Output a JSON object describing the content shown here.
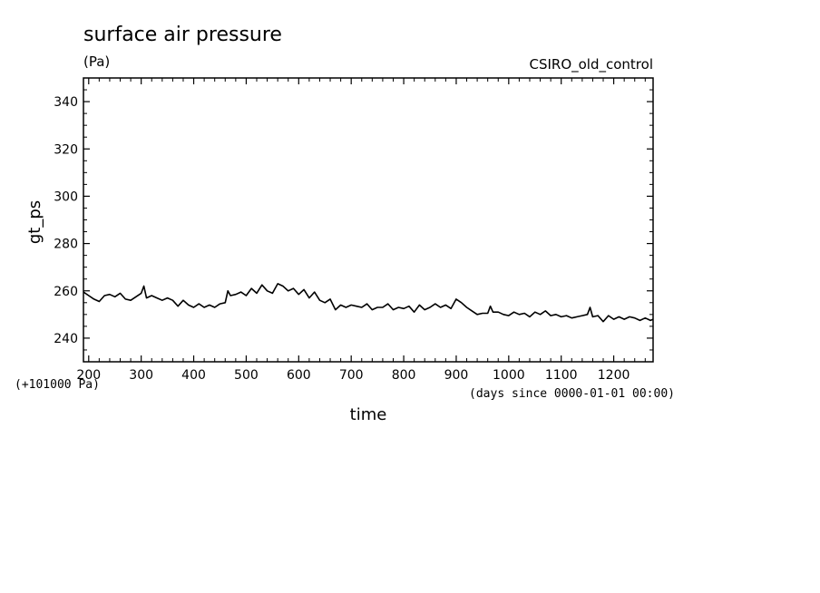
{
  "chart_data": {
    "type": "line",
    "title": "surface air pressure",
    "units": "(Pa)",
    "experiment": "CSIRO_old_control",
    "xlabel": "time",
    "x_units": "(days since 0000-01-01 00:00)",
    "ylabel": "gt_ps",
    "y_offset_label": "(+101000 Pa)",
    "xlim": [
      190,
      1275
    ],
    "ylim": [
      230,
      350
    ],
    "x_ticks": [
      200,
      300,
      400,
      500,
      600,
      700,
      800,
      900,
      1000,
      1100,
      1200
    ],
    "y_ticks": [
      240,
      260,
      280,
      300,
      320,
      340
    ],
    "grid": false,
    "series": [
      {
        "color": "#000000",
        "x": [
          190,
          200,
          210,
          220,
          230,
          240,
          250,
          260,
          270,
          280,
          290,
          300,
          305,
          310,
          320,
          330,
          340,
          350,
          360,
          370,
          380,
          390,
          400,
          410,
          420,
          430,
          440,
          450,
          460,
          465,
          470,
          480,
          490,
          500,
          510,
          520,
          530,
          540,
          550,
          560,
          570,
          580,
          590,
          600,
          610,
          620,
          630,
          640,
          650,
          660,
          670,
          680,
          690,
          700,
          710,
          720,
          730,
          740,
          750,
          760,
          770,
          780,
          790,
          800,
          810,
          820,
          830,
          840,
          850,
          860,
          870,
          880,
          890,
          900,
          910,
          920,
          930,
          940,
          950,
          960,
          965,
          970,
          980,
          990,
          1000,
          1010,
          1020,
          1030,
          1040,
          1050,
          1060,
          1070,
          1080,
          1090,
          1100,
          1110,
          1120,
          1130,
          1140,
          1150,
          1155,
          1160,
          1170,
          1180,
          1190,
          1200,
          1210,
          1220,
          1230,
          1240,
          1250,
          1260,
          1270,
          1275
        ],
        "y": [
          259.5,
          258.0,
          256.5,
          255.5,
          258.0,
          258.5,
          257.5,
          259.0,
          256.5,
          256.0,
          257.5,
          259.0,
          262.0,
          257.0,
          258.0,
          257.0,
          256.0,
          257.0,
          256.0,
          253.5,
          256.0,
          254.0,
          253.0,
          254.5,
          253.0,
          254.0,
          253.0,
          254.5,
          255.0,
          260.0,
          258.0,
          258.5,
          259.5,
          258.0,
          261.0,
          259.0,
          262.5,
          260.0,
          259.0,
          263.0,
          262.0,
          260.0,
          261.0,
          258.5,
          260.5,
          257.0,
          259.5,
          256.0,
          255.0,
          256.5,
          252.0,
          254.0,
          253.0,
          254.0,
          253.5,
          253.0,
          254.5,
          252.0,
          253.0,
          253.0,
          254.5,
          252.0,
          253.0,
          252.5,
          253.5,
          251.0,
          254.0,
          252.0,
          253.0,
          254.5,
          253.0,
          254.0,
          252.5,
          256.5,
          255.0,
          253.0,
          251.5,
          250.0,
          250.5,
          250.5,
          253.5,
          251.0,
          251.0,
          250.0,
          249.5,
          251.0,
          250.0,
          250.5,
          249.0,
          251.0,
          250.0,
          251.5,
          249.5,
          250.0,
          249.0,
          249.5,
          248.5,
          249.0,
          249.5,
          250.0,
          253.0,
          249.0,
          249.5,
          247.0,
          249.5,
          248.0,
          249.0,
          248.0,
          249.0,
          248.5,
          247.5,
          248.5,
          247.5,
          248.0
        ]
      }
    ]
  }
}
